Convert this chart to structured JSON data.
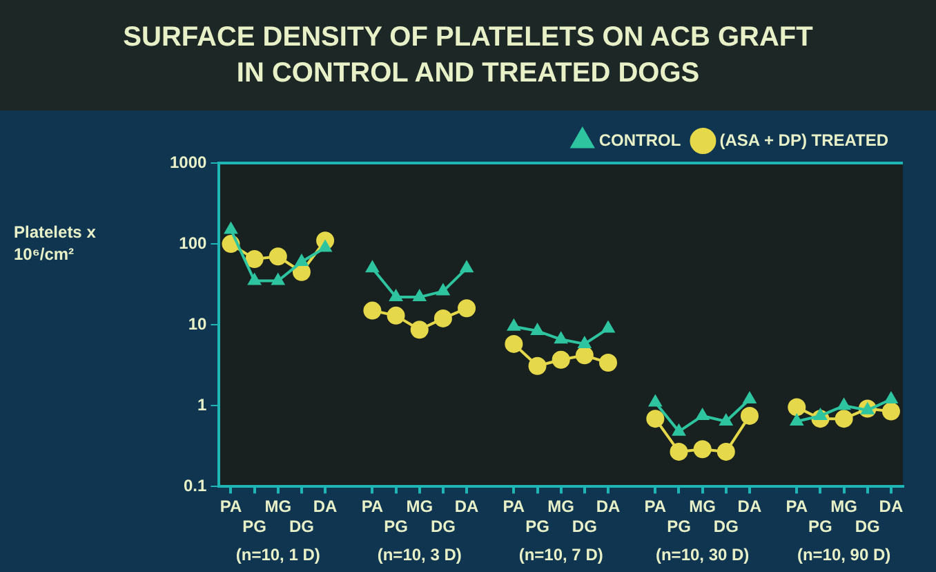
{
  "chart_data": {
    "type": "line",
    "title": "SURFACE DENSITY OF PLATELETS ON ACB GRAFT IN CONTROL AND TREATED DOGS",
    "ylabel": "Platelets x 10⁶/cm²",
    "categories": [
      "PA",
      "PG",
      "MG",
      "DG",
      "DA",
      null,
      "PA",
      "PG",
      "MG",
      "DG",
      "DA",
      null,
      "PA",
      "PG",
      "MG",
      "DG",
      "DA",
      null,
      "PA",
      "PG",
      "MG",
      "DG",
      "DA",
      null,
      "PA",
      "PG",
      "MG",
      "DG",
      "DA"
    ],
    "series": [
      {
        "name": "CONTROL",
        "color": "#2ec4a0",
        "marker": "triangle",
        "values": [
          150,
          35,
          35,
          60,
          90,
          null,
          50,
          22,
          22,
          26,
          50,
          null,
          9.5,
          8.4,
          6.6,
          5.8,
          9,
          null,
          1.1,
          0.48,
          0.75,
          0.64,
          1.2,
          null,
          0.64,
          0.75,
          1.0,
          0.88,
          1.2
        ]
      },
      {
        "name": "(ASA + DP) TREATED",
        "color": "#e5d84a",
        "marker": "circle",
        "values": [
          100,
          65,
          70,
          45,
          110,
          null,
          15,
          13,
          8.7,
          12,
          16,
          null,
          5.8,
          3.1,
          3.7,
          4.2,
          3.4,
          null,
          0.69,
          0.27,
          0.29,
          0.27,
          0.75,
          null,
          0.96,
          0.69,
          0.69,
          0.92,
          0.85
        ]
      }
    ],
    "annotations": [
      "(n=10, 1 D)",
      "(n=10, 3 D)",
      "(n=10, 7 D)",
      "(n=10, 30 D)",
      "(n=10, 90 D)"
    ],
    "log": "y",
    "ylim": [
      0.1,
      1000
    ],
    "yticks": [
      0.1,
      1,
      10,
      100,
      1000
    ],
    "grid": false,
    "legend": "top right"
  }
}
